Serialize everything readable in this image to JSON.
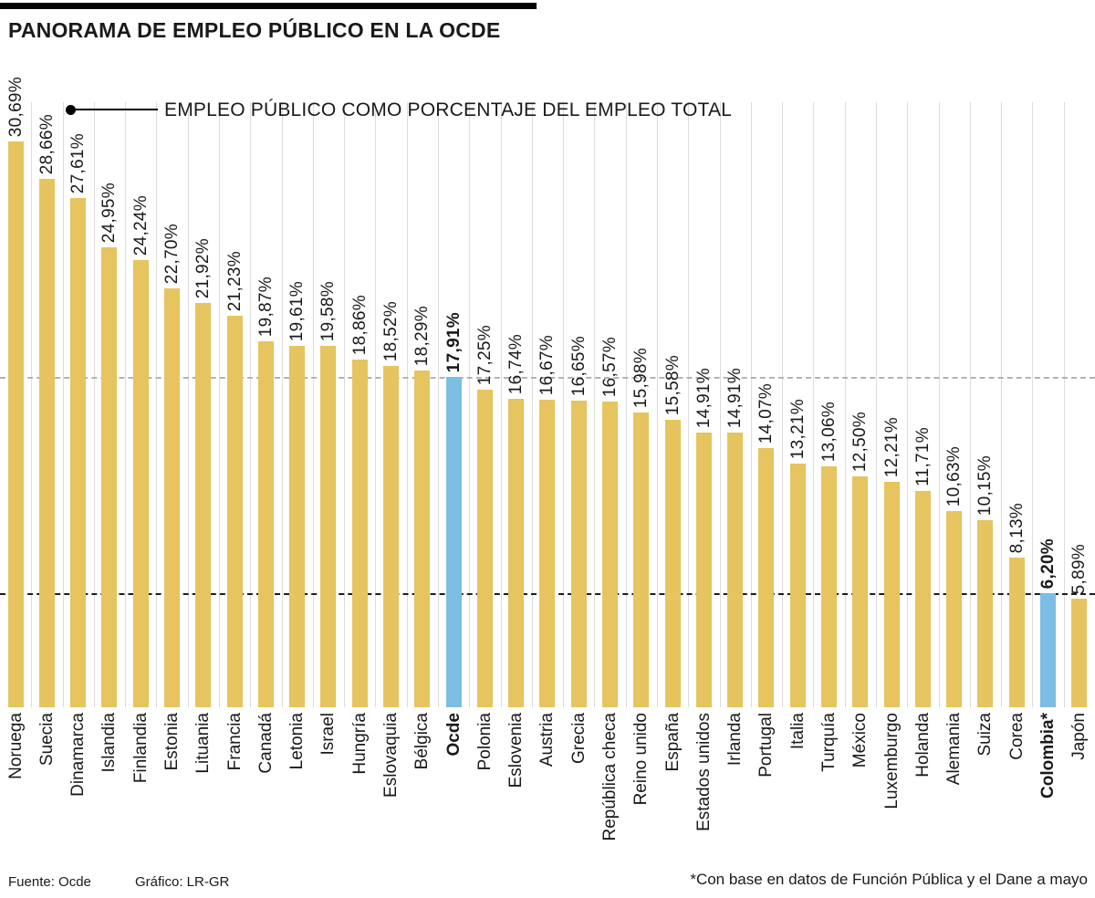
{
  "header": {
    "title": "PANORAMA DE EMPLEO PÚBLICO EN LA OCDE"
  },
  "annotation": {
    "label": "EMPLEO PÚBLICO COMO PORCENTAJE DEL EMPLEO TOTAL"
  },
  "footer": {
    "source": "Fuente: Ocde",
    "credit": "Gráfico: LR-GR",
    "note": "*Con base en datos de Función Pública y el Dane a mayo"
  },
  "colors": {
    "bar": "#E6C45F",
    "highlight": "#7CBEE4",
    "grid": "#DCDCDC",
    "dash_light": "#B3B3B3",
    "dash_dark": "#1C1C1C"
  },
  "chart_data": {
    "type": "bar",
    "title": "PANORAMA DE EMPLEO PÚBLICO EN LA OCDE",
    "value_axis_label": "EMPLEO PÚBLICO COMO PORCENTAJE DEL EMPLEO TOTAL",
    "unit": "%",
    "decimal_separator": ",",
    "ylim": [
      0,
      32
    ],
    "grid": "vertical-light-between-categories",
    "legend": "none",
    "items": [
      {
        "label": "Noruega",
        "value": 30.69,
        "display": "30,69%",
        "highlight": false
      },
      {
        "label": "Suecia",
        "value": 28.66,
        "display": "28,66%",
        "highlight": false
      },
      {
        "label": "Dinamarca",
        "value": 27.61,
        "display": "27,61%",
        "highlight": false
      },
      {
        "label": "Islandia",
        "value": 24.95,
        "display": "24,95%",
        "highlight": false
      },
      {
        "label": "Finlandia",
        "value": 24.24,
        "display": "24,24%",
        "highlight": false
      },
      {
        "label": "Estonia",
        "value": 22.7,
        "display": "22,70%",
        "highlight": false
      },
      {
        "label": "Lituania",
        "value": 21.92,
        "display": "21,92%",
        "highlight": false
      },
      {
        "label": "Francia",
        "value": 21.23,
        "display": "21,23%",
        "highlight": false
      },
      {
        "label": "Canadá",
        "value": 19.87,
        "display": "19,87%",
        "highlight": false
      },
      {
        "label": "Letonia",
        "value": 19.61,
        "display": "19,61%",
        "highlight": false
      },
      {
        "label": "Israel",
        "value": 19.58,
        "display": "19,58%",
        "highlight": false
      },
      {
        "label": "Hungría",
        "value": 18.86,
        "display": "18,86%",
        "highlight": false
      },
      {
        "label": "Eslovaquia",
        "value": 18.52,
        "display": "18,52%",
        "highlight": false
      },
      {
        "label": "Bélgica",
        "value": 18.29,
        "display": "18,29%",
        "highlight": false
      },
      {
        "label": "Ocde",
        "value": 17.91,
        "display": "17,91%",
        "highlight": true
      },
      {
        "label": "Polonia",
        "value": 17.25,
        "display": "17,25%",
        "highlight": false
      },
      {
        "label": "Eslovenia",
        "value": 16.74,
        "display": "16,74%",
        "highlight": false
      },
      {
        "label": "Austria",
        "value": 16.67,
        "display": "16,67%",
        "highlight": false
      },
      {
        "label": "Grecia",
        "value": 16.65,
        "display": "16,65%",
        "highlight": false
      },
      {
        "label": "República checa",
        "value": 16.57,
        "display": "16,57%",
        "highlight": false
      },
      {
        "label": "Reino unido",
        "value": 15.98,
        "display": "15,98%",
        "highlight": false
      },
      {
        "label": "España",
        "value": 15.58,
        "display": "15,58%",
        "highlight": false
      },
      {
        "label": "Estados unidos",
        "value": 14.91,
        "display": "14,91%",
        "highlight": false
      },
      {
        "label": "Irlanda",
        "value": 14.91,
        "display": "14,91%",
        "highlight": false
      },
      {
        "label": "Portugal",
        "value": 14.07,
        "display": "14,07%",
        "highlight": false
      },
      {
        "label": "Italia",
        "value": 13.21,
        "display": "13,21%",
        "highlight": false
      },
      {
        "label": "Turquía",
        "value": 13.06,
        "display": "13,06%",
        "highlight": false
      },
      {
        "label": "México",
        "value": 12.5,
        "display": "12,50%",
        "highlight": false
      },
      {
        "label": "Luxemburgo",
        "value": 12.21,
        "display": "12,21%",
        "highlight": false
      },
      {
        "label": "Holanda",
        "value": 11.71,
        "display": "11,71%",
        "highlight": false
      },
      {
        "label": "Alemania",
        "value": 10.63,
        "display": "10,63%",
        "highlight": false
      },
      {
        "label": "Suiza",
        "value": 10.15,
        "display": "10,15%",
        "highlight": false
      },
      {
        "label": "Corea",
        "value": 8.13,
        "display": "8,13%",
        "highlight": false
      },
      {
        "label": "Colombia*",
        "value": 6.2,
        "display": "6,20%",
        "highlight": true
      },
      {
        "label": "Japón",
        "value": 5.89,
        "display": "5,89%",
        "highlight": false
      }
    ],
    "reference_lines": [
      {
        "value": 17.91,
        "style": "light",
        "matches": "Ocde"
      },
      {
        "value": 6.2,
        "style": "dark",
        "matches": "Colombia*"
      }
    ]
  }
}
